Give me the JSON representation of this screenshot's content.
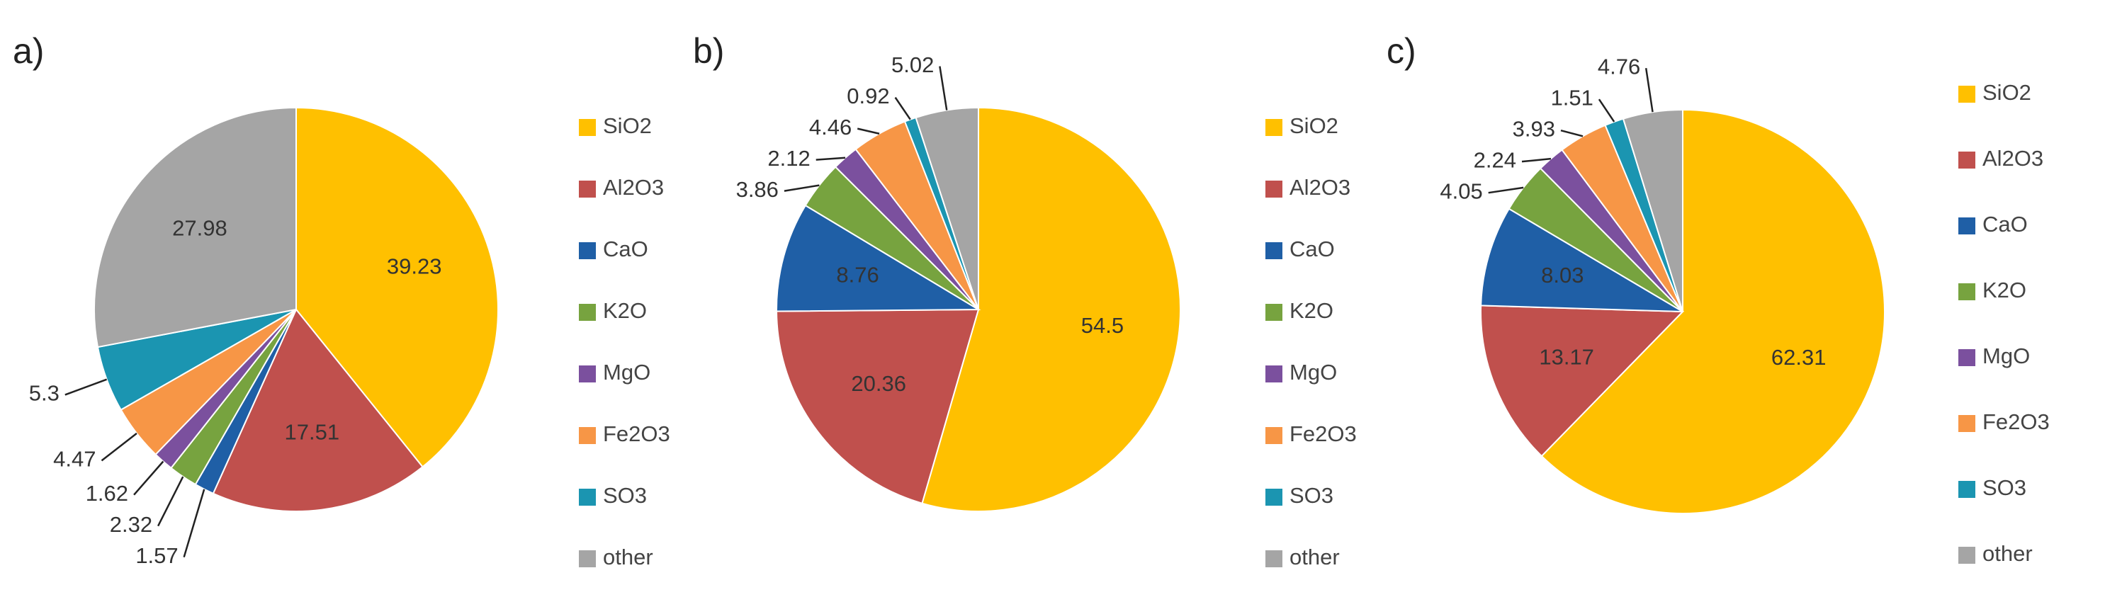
{
  "chart_data": [
    {
      "type": "pie",
      "title": "a)",
      "categories": [
        "SiO2",
        "Al2O3",
        "CaO",
        "K2O",
        "MgO",
        "Fe2O3",
        "SO3",
        "other"
      ],
      "values": [
        39.23,
        17.51,
        1.57,
        2.32,
        1.62,
        4.47,
        5.3,
        27.98
      ],
      "colors": [
        "#ffc000",
        "#c0504d",
        "#1f5fa6",
        "#77a33f",
        "#7b509e",
        "#f79646",
        "#1b95b1",
        "#a5a5a5"
      ]
    },
    {
      "type": "pie",
      "title": "b)",
      "categories": [
        "SiO2",
        "Al2O3",
        "CaO",
        "K2O",
        "MgO",
        "Fe2O3",
        "SO3",
        "other"
      ],
      "values": [
        54.5,
        20.36,
        8.76,
        3.86,
        2.12,
        4.46,
        0.92,
        5.02
      ],
      "colors": [
        "#ffc000",
        "#c0504d",
        "#1f5fa6",
        "#77a33f",
        "#7b509e",
        "#f79646",
        "#1b95b1",
        "#a5a5a5"
      ]
    },
    {
      "type": "pie",
      "title": "c)",
      "categories": [
        "SiO2",
        "Al2O3",
        "CaO",
        "K2O",
        "MgO",
        "Fe2O3",
        "SO3",
        "other"
      ],
      "values": [
        62.31,
        13.17,
        8.03,
        4.05,
        2.24,
        3.93,
        1.51,
        4.76
      ],
      "colors": [
        "#ffc000",
        "#c0504d",
        "#1f5fa6",
        "#77a33f",
        "#7b509e",
        "#f79646",
        "#1b95b1",
        "#a5a5a5"
      ]
    }
  ]
}
